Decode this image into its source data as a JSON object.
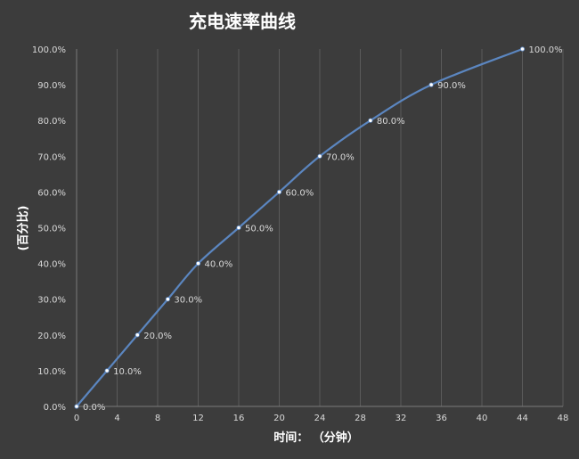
{
  "chart_data": {
    "type": "line",
    "title": "充电速率曲线",
    "xlabel": "时间： （分钟）",
    "ylabel": "(百分比)",
    "x_ticks": [
      "0",
      "4",
      "8",
      "12",
      "16",
      "20",
      "24",
      "28",
      "32",
      "36",
      "40",
      "44",
      "48"
    ],
    "y_ticks": [
      "0.0%",
      "10.0%",
      "20.0%",
      "30.0%",
      "40.0%",
      "50.0%",
      "60.0%",
      "70.0%",
      "80.0%",
      "90.0%",
      "100.0%"
    ],
    "xlim": [
      0,
      48
    ],
    "ylim": [
      0,
      100
    ],
    "grid": "vertical",
    "series": [
      {
        "color": "#5b86c0",
        "x": [
          0,
          3,
          6,
          9,
          12,
          16,
          20,
          24,
          29,
          35,
          44
        ],
        "values": [
          0,
          10,
          20,
          30,
          40,
          50,
          60,
          70,
          80,
          90,
          100
        ],
        "labels": [
          "0.0%",
          "10.0%",
          "20.0%",
          "30.0%",
          "40.0%",
          "50.0%",
          "60.0%",
          "70.0%",
          "80.0%",
          "90.0%",
          "100.0%"
        ]
      }
    ],
    "colors": {
      "background": "#3c3c3c",
      "grid": "#5a5a5a",
      "line": "#5b86c0",
      "text": "#d9d9d9",
      "marker": "#ffffff"
    }
  }
}
